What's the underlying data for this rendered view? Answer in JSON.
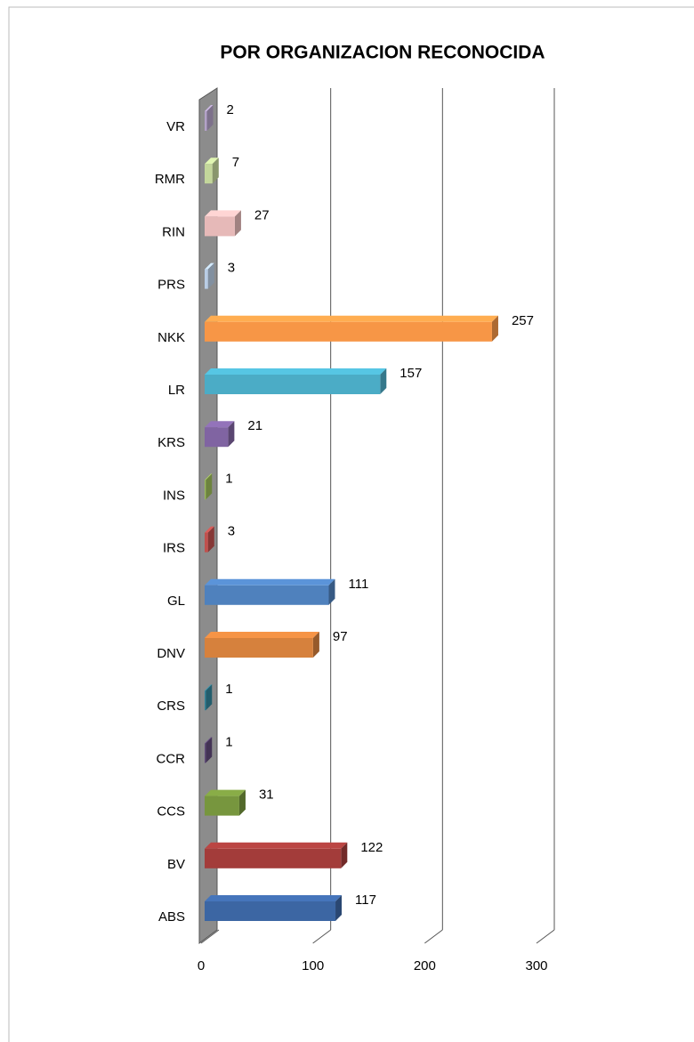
{
  "chart_data": {
    "type": "bar",
    "orientation": "horizontal",
    "title": "POR ORGANIZACION RECONOCIDA",
    "categories": [
      "ABS",
      "BV",
      "CCS",
      "CCR",
      "CRS",
      "DNV",
      "GL",
      "IRS",
      "INS",
      "KRS",
      "LR",
      "NKK",
      "PRS",
      "RIN",
      "RMR",
      "VR"
    ],
    "values": [
      117,
      122,
      31,
      1,
      1,
      97,
      111,
      3,
      1,
      21,
      157,
      257,
      3,
      27,
      7,
      2
    ],
    "colors": [
      "#3c66a3",
      "#a33c3a",
      "#77963e",
      "#5f497a",
      "#31859c",
      "#d6813d",
      "#4f81bd",
      "#c0504d",
      "#9bbb59",
      "#8064a2",
      "#4bacc6",
      "#f79646",
      "#b9cde5",
      "#e6b9b8",
      "#c3d69b",
      "#b3a2c7"
    ],
    "xlim": [
      0,
      300
    ],
    "xticks": [
      0,
      100,
      200,
      300
    ],
    "grid": true
  }
}
